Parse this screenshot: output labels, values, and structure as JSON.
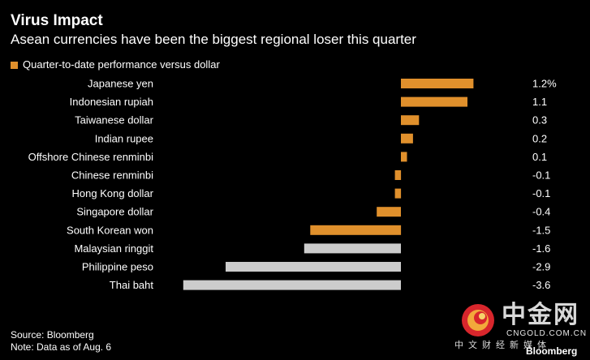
{
  "chart_data": {
    "type": "bar",
    "orientation": "horizontal",
    "title": "Virus Impact",
    "subtitle": "Asean currencies have been the biggest regional loser this quarter",
    "legend": "Quarter-to-date performance versus dollar",
    "categories": [
      "Japanese yen",
      "Indonesian rupiah",
      "Taiwanese dollar",
      "Indian rupee",
      "Offshore Chinese renminbi",
      "Chinese renminbi",
      "Hong Kong dollar",
      "Singapore dollar",
      "South Korean won",
      "Malaysian ringgit",
      "Philippine peso",
      "Thai baht"
    ],
    "values": [
      1.2,
      1.1,
      0.3,
      0.2,
      0.1,
      -0.1,
      -0.1,
      -0.4,
      -1.5,
      -1.6,
      -2.9,
      -3.6
    ],
    "value_labels": [
      "1.2%",
      "1.1",
      "0.3",
      "0.2",
      "0.1",
      "-0.1",
      "-0.1",
      "-0.4",
      "-1.5",
      "-1.6",
      "-2.9",
      "-3.6"
    ],
    "bar_colors": [
      "#e0902c",
      "#e0902c",
      "#e0902c",
      "#e0902c",
      "#e0902c",
      "#e0902c",
      "#e0902c",
      "#e0902c",
      "#e0902c",
      "#cccccc",
      "#cccccc",
      "#cccccc"
    ],
    "xlim": [
      -3.6,
      1.2
    ],
    "grid": false
  },
  "colors": {
    "background": "#000000",
    "text": "#ffffff",
    "accent_orange": "#e0902c",
    "asean_gray": "#cccccc"
  },
  "footer": {
    "source": "Source: Bloomberg",
    "note": "Note: Data as of Aug. 6"
  },
  "watermark": {
    "brand": "中金网",
    "domain": "CNGOLD.COM.CN",
    "subtitle": "中文财经新媒体",
    "bloomberg": "Bloomberg"
  }
}
